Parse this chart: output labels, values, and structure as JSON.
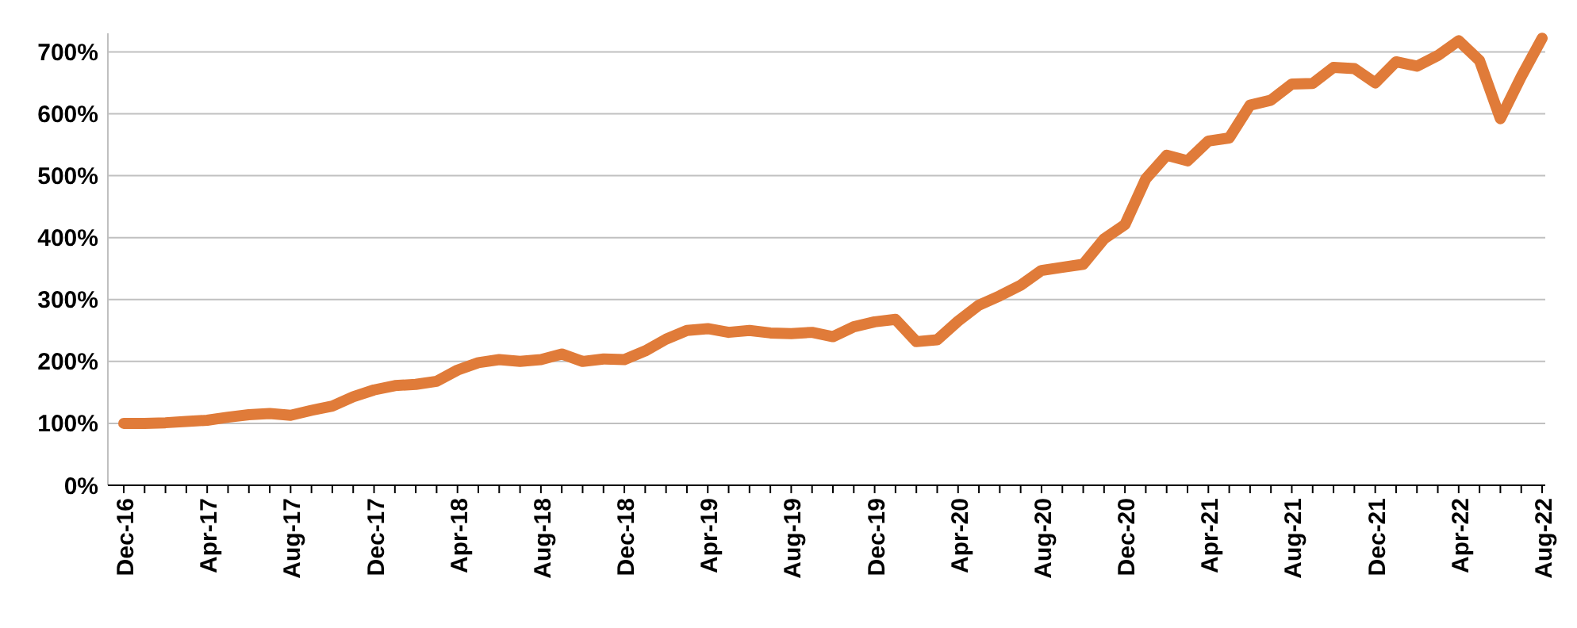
{
  "chart_data": {
    "type": "line",
    "categories": [
      "Dec-16",
      null,
      null,
      null,
      "Apr-17",
      null,
      null,
      null,
      "Aug-17",
      null,
      null,
      null,
      "Dec-17",
      null,
      null,
      null,
      "Apr-18",
      null,
      null,
      null,
      "Aug-18",
      null,
      null,
      null,
      "Dec-18",
      null,
      null,
      null,
      "Apr-19",
      null,
      null,
      null,
      "Aug-19",
      null,
      null,
      null,
      "Dec-19",
      null,
      null,
      null,
      "Apr-20",
      null,
      null,
      null,
      "Aug-20",
      null,
      null,
      null,
      "Dec-20",
      null,
      null,
      null,
      "Apr-21",
      null,
      null,
      null,
      "Aug-21",
      null,
      null,
      null,
      "Dec-21",
      null,
      null,
      null,
      "Apr-22",
      null,
      null,
      null,
      "Aug-22"
    ],
    "series": [
      {
        "color": "#e07b39",
        "values": [
          100,
          100,
          101,
          103,
          105,
          110,
          114,
          116,
          113,
          121,
          128,
          143,
          154,
          161,
          163,
          168,
          186,
          198,
          203,
          200,
          203,
          212,
          200,
          204,
          203,
          217,
          236,
          250,
          253,
          247,
          250,
          246,
          245,
          247,
          240,
          256,
          264,
          268,
          232,
          235,
          265,
          291,
          306,
          323,
          347,
          352,
          357,
          398,
          421,
          495,
          533,
          524,
          556,
          561,
          614,
          622,
          648,
          649,
          675,
          673,
          650,
          684,
          677,
          694,
          718,
          686,
          592,
          660,
          722
        ]
      }
    ],
    "ylim": [
      0,
      730
    ],
    "yticks": [
      {
        "value": 0,
        "label": "0%"
      },
      {
        "value": 100,
        "label": "100%"
      },
      {
        "value": 200,
        "label": "200%"
      },
      {
        "value": 300,
        "label": "300%"
      },
      {
        "value": 400,
        "label": "400%"
      },
      {
        "value": 500,
        "label": "500%"
      },
      {
        "value": 600,
        "label": "600%"
      },
      {
        "value": 700,
        "label": "700%"
      }
    ],
    "grid": "y",
    "marker": "none",
    "line_style": "solid"
  }
}
